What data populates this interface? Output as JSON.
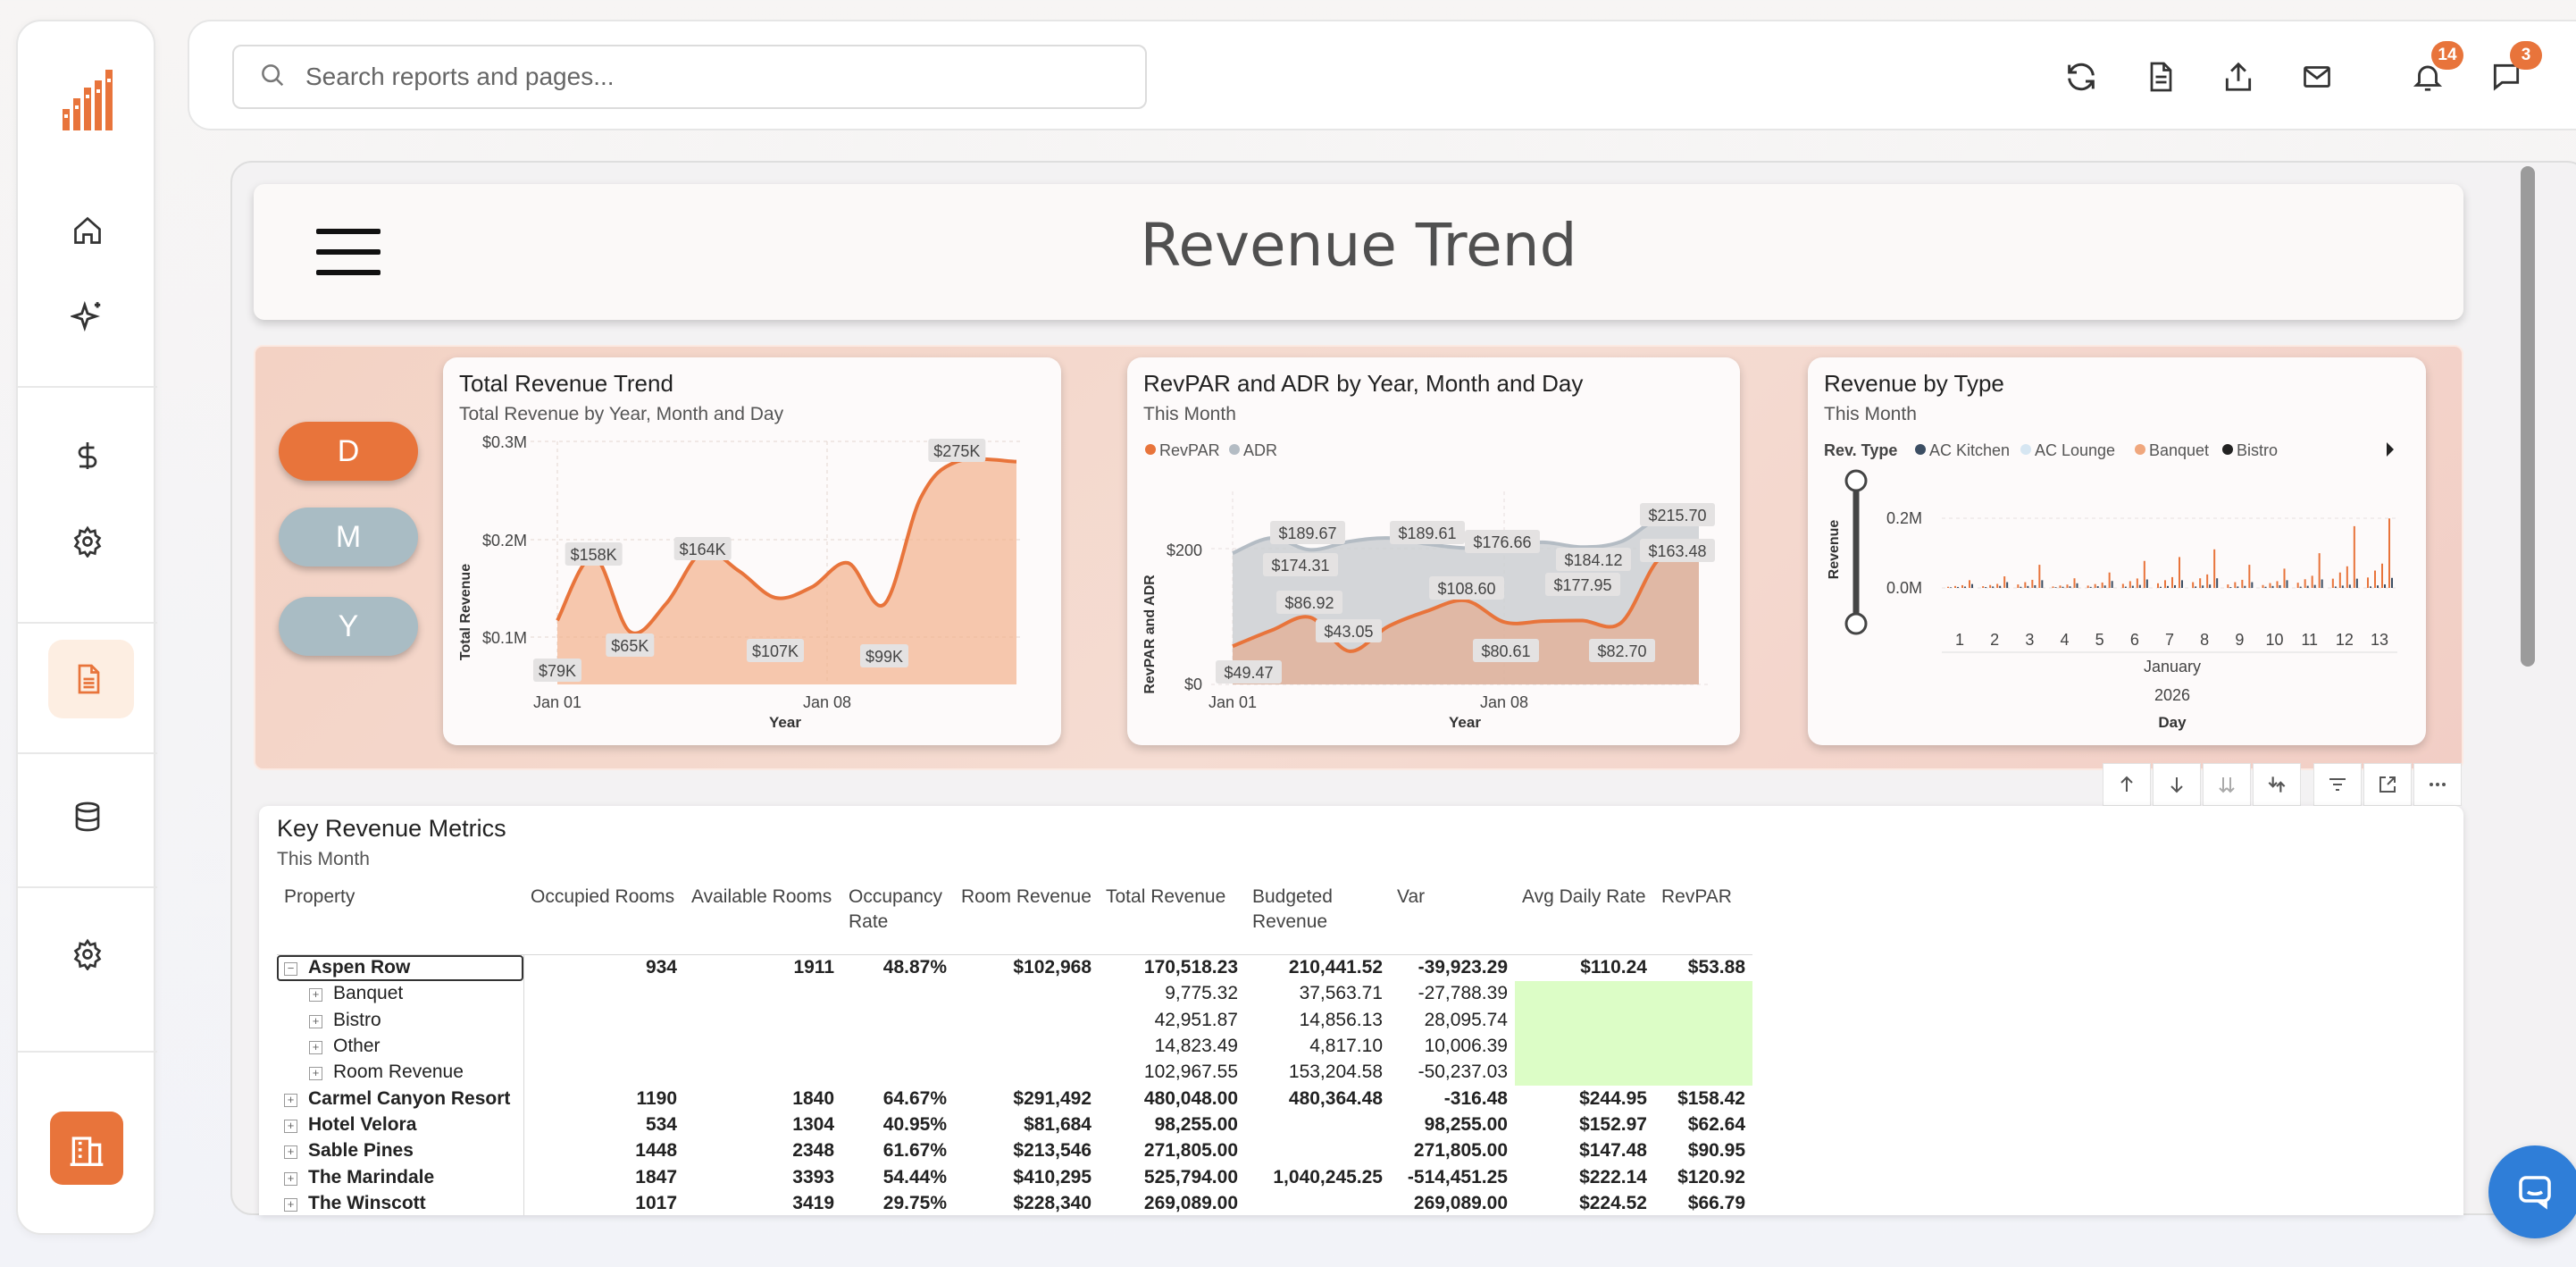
{
  "app": {
    "title": "Revenue Trend"
  },
  "search": {
    "placeholder": "Search reports and pages..."
  },
  "notifications": {
    "bell_count": "14",
    "chat_count": "3"
  },
  "colors": {
    "accent": "#e8743b",
    "revpar": "#e8743b",
    "adr": "#b4bcc4",
    "ac_kitchen": "#3c4e63",
    "ac_lounge": "#d6e6f2",
    "banquet": "#f0a77d",
    "bistro": "#222222",
    "highlight": "#dcfdc6"
  },
  "sidebar": {
    "items": [
      {
        "icon": "home-icon"
      },
      {
        "icon": "sparkle-icon"
      },
      {
        "icon": "dollar-icon"
      },
      {
        "icon": "gear-icon"
      },
      {
        "icon": "report-icon",
        "active": true
      },
      {
        "icon": "database-icon"
      },
      {
        "icon": "gear-icon"
      },
      {
        "icon": "building-icon"
      }
    ]
  },
  "granularity": {
    "options": [
      "D",
      "M",
      "Y"
    ],
    "selected": "D"
  },
  "charts": {
    "total_revenue": {
      "title": "Total Revenue Trend",
      "subtitle": "Total Revenue by Year, Month and Day",
      "ylabel": "Total Revenue",
      "xlabel": "Year",
      "yticks": [
        "$0.3M",
        "$0.2M",
        "$0.1M"
      ],
      "xticks": [
        "Jan 01",
        "Jan 08"
      ],
      "labels": [
        "$79K",
        "$158K",
        "$65K",
        "$164K",
        "$107K",
        "$99K",
        "$275K"
      ]
    },
    "revpar_adr": {
      "title": "RevPAR and ADR by Year, Month and Day",
      "subtitle": "This Month",
      "legend": [
        "RevPAR",
        "ADR"
      ],
      "ylabel": "RevPAR and ADR",
      "xlabel": "Year",
      "yticks": [
        "$200",
        "$0"
      ],
      "xticks": [
        "Jan 01",
        "Jan 08"
      ],
      "adr_labels": [
        "$189.67",
        "$174.31",
        "$189.61",
        "$176.66",
        "$184.12",
        "$177.95",
        "$215.70"
      ],
      "revpar_labels": [
        "$49.47",
        "$86.92",
        "$43.05",
        "$108.60",
        "$80.61",
        "$82.70",
        "$163.48"
      ]
    },
    "revenue_type": {
      "title": "Revenue by Type",
      "subtitle": "This Month",
      "legend_title": "Rev. Type",
      "legend": [
        "AC Kitchen",
        "AC Lounge",
        "Banquet",
        "Bistro"
      ],
      "ylabel": "Revenue",
      "yticks": [
        "0.2M",
        "0.0M"
      ],
      "xticks": [
        "1",
        "2",
        "3",
        "4",
        "5",
        "6",
        "7",
        "8",
        "9",
        "10",
        "11",
        "12",
        "13"
      ],
      "month": "January",
      "year": "2026",
      "xlabel": "Day"
    }
  },
  "chart_data": [
    {
      "type": "area",
      "title": "Total Revenue Trend",
      "xlabel": "Year",
      "ylabel": "Total Revenue",
      "x": [
        "Jan 01",
        "Jan 02",
        "Jan 03",
        "Jan 04",
        "Jan 05",
        "Jan 06",
        "Jan 07",
        "Jan 08",
        "Jan 09",
        "Jan 10",
        "Jan 11",
        "Jan 12",
        "Jan 13"
      ],
      "values": [
        79000,
        158000,
        65000,
        100000,
        164000,
        140000,
        107000,
        120000,
        150000,
        99000,
        230000,
        275000,
        275000
      ],
      "ylim": [
        0,
        300000
      ]
    },
    {
      "type": "area",
      "title": "RevPAR and ADR by Year, Month and Day",
      "xlabel": "Year",
      "ylabel": "RevPAR and ADR",
      "x": [
        "Jan 01",
        "Jan 02",
        "Jan 03",
        "Jan 04",
        "Jan 05",
        "Jan 06",
        "Jan 07",
        "Jan 08",
        "Jan 09",
        "Jan 10",
        "Jan 11",
        "Jan 12",
        "Jan 13"
      ],
      "series": [
        {
          "name": "ADR",
          "values": [
            170,
            189.67,
            174.31,
            185,
            189.61,
            182,
            176.66,
            180,
            184.12,
            177.95,
            185,
            215.7,
            215.7
          ]
        },
        {
          "name": "RevPAR",
          "values": [
            49.47,
            70,
            86.92,
            43.05,
            75,
            95,
            108.6,
            80.61,
            82,
            82.7,
            80,
            163.48,
            163.48
          ]
        }
      ],
      "ylim": [
        0,
        250
      ]
    },
    {
      "type": "bar",
      "title": "Revenue by Type",
      "xlabel": "Day",
      "ylabel": "Revenue",
      "categories": [
        "1",
        "2",
        "3",
        "4",
        "5",
        "6",
        "7",
        "8",
        "9",
        "10",
        "11",
        "12",
        "13"
      ],
      "series": [
        {
          "name": "Banquet",
          "values": [
            20000,
            30000,
            60000,
            25000,
            40000,
            70000,
            80000,
            100000,
            60000,
            50000,
            90000,
            160000,
            180000
          ]
        },
        {
          "name": "Bistro",
          "values": [
            10000,
            15000,
            20000,
            12000,
            18000,
            22000,
            20000,
            25000,
            15000,
            20000,
            22000,
            24000,
            26000
          ]
        }
      ],
      "ylim": [
        0,
        250000
      ]
    }
  ],
  "table": {
    "title": "Key Revenue Metrics",
    "subtitle": "This Month",
    "headers": [
      "Property",
      "Occupied Rooms",
      "Available Rooms",
      "Occupancy Rate",
      "Room Revenue",
      "Total Revenue",
      "Budgeted Revenue",
      "Var",
      "Avg Daily Rate",
      "RevPAR"
    ],
    "rows": [
      {
        "level": 0,
        "expander": "⊟",
        "name": "Aspen Row",
        "cells": [
          "934",
          "1911",
          "48.87%",
          "$102,968",
          "170,518.23",
          "210,441.52",
          "-39,923.29",
          "$110.24",
          "$53.88"
        ],
        "selected": true
      },
      {
        "level": 1,
        "expander": "⊞",
        "name": "Banquet",
        "cells": [
          "",
          "",
          "",
          "",
          "9,775.32",
          "37,563.71",
          "-27,788.39",
          "",
          ""
        ],
        "green": true
      },
      {
        "level": 1,
        "expander": "⊞",
        "name": "Bistro",
        "cells": [
          "",
          "",
          "",
          "",
          "42,951.87",
          "14,856.13",
          "28,095.74",
          "",
          ""
        ],
        "green": true
      },
      {
        "level": 1,
        "expander": "⊞",
        "name": "Other",
        "cells": [
          "",
          "",
          "",
          "",
          "14,823.49",
          "4,817.10",
          "10,006.39",
          "",
          ""
        ],
        "green": true
      },
      {
        "level": 1,
        "expander": "⊞",
        "name": "Room Revenue",
        "cells": [
          "",
          "",
          "",
          "",
          "102,967.55",
          "153,204.58",
          "-50,237.03",
          "",
          ""
        ],
        "green": true
      },
      {
        "level": 0,
        "expander": "⊞",
        "name": "Carmel Canyon Resort",
        "cells": [
          "1190",
          "1840",
          "64.67%",
          "$291,492",
          "480,048.00",
          "480,364.48",
          "-316.48",
          "$244.95",
          "$158.42"
        ]
      },
      {
        "level": 0,
        "expander": "⊞",
        "name": "Hotel Velora",
        "cells": [
          "534",
          "1304",
          "40.95%",
          "$81,684",
          "98,255.00",
          "",
          "98,255.00",
          "$152.97",
          "$62.64"
        ]
      },
      {
        "level": 0,
        "expander": "⊞",
        "name": "Sable Pines",
        "cells": [
          "1448",
          "2348",
          "61.67%",
          "$213,546",
          "271,805.00",
          "",
          "271,805.00",
          "$147.48",
          "$90.95"
        ]
      },
      {
        "level": 0,
        "expander": "⊞",
        "name": "The Marindale",
        "cells": [
          "1847",
          "3393",
          "54.44%",
          "$410,295",
          "525,794.00",
          "1,040,245.25",
          "-514,451.25",
          "$222.14",
          "$120.92"
        ]
      },
      {
        "level": 0,
        "expander": "⊞",
        "name": "The Winscott",
        "cells": [
          "1017",
          "3419",
          "29.75%",
          "$228,340",
          "269,089.00",
          "",
          "269,089.00",
          "$224.52",
          "$66.79"
        ]
      }
    ]
  }
}
